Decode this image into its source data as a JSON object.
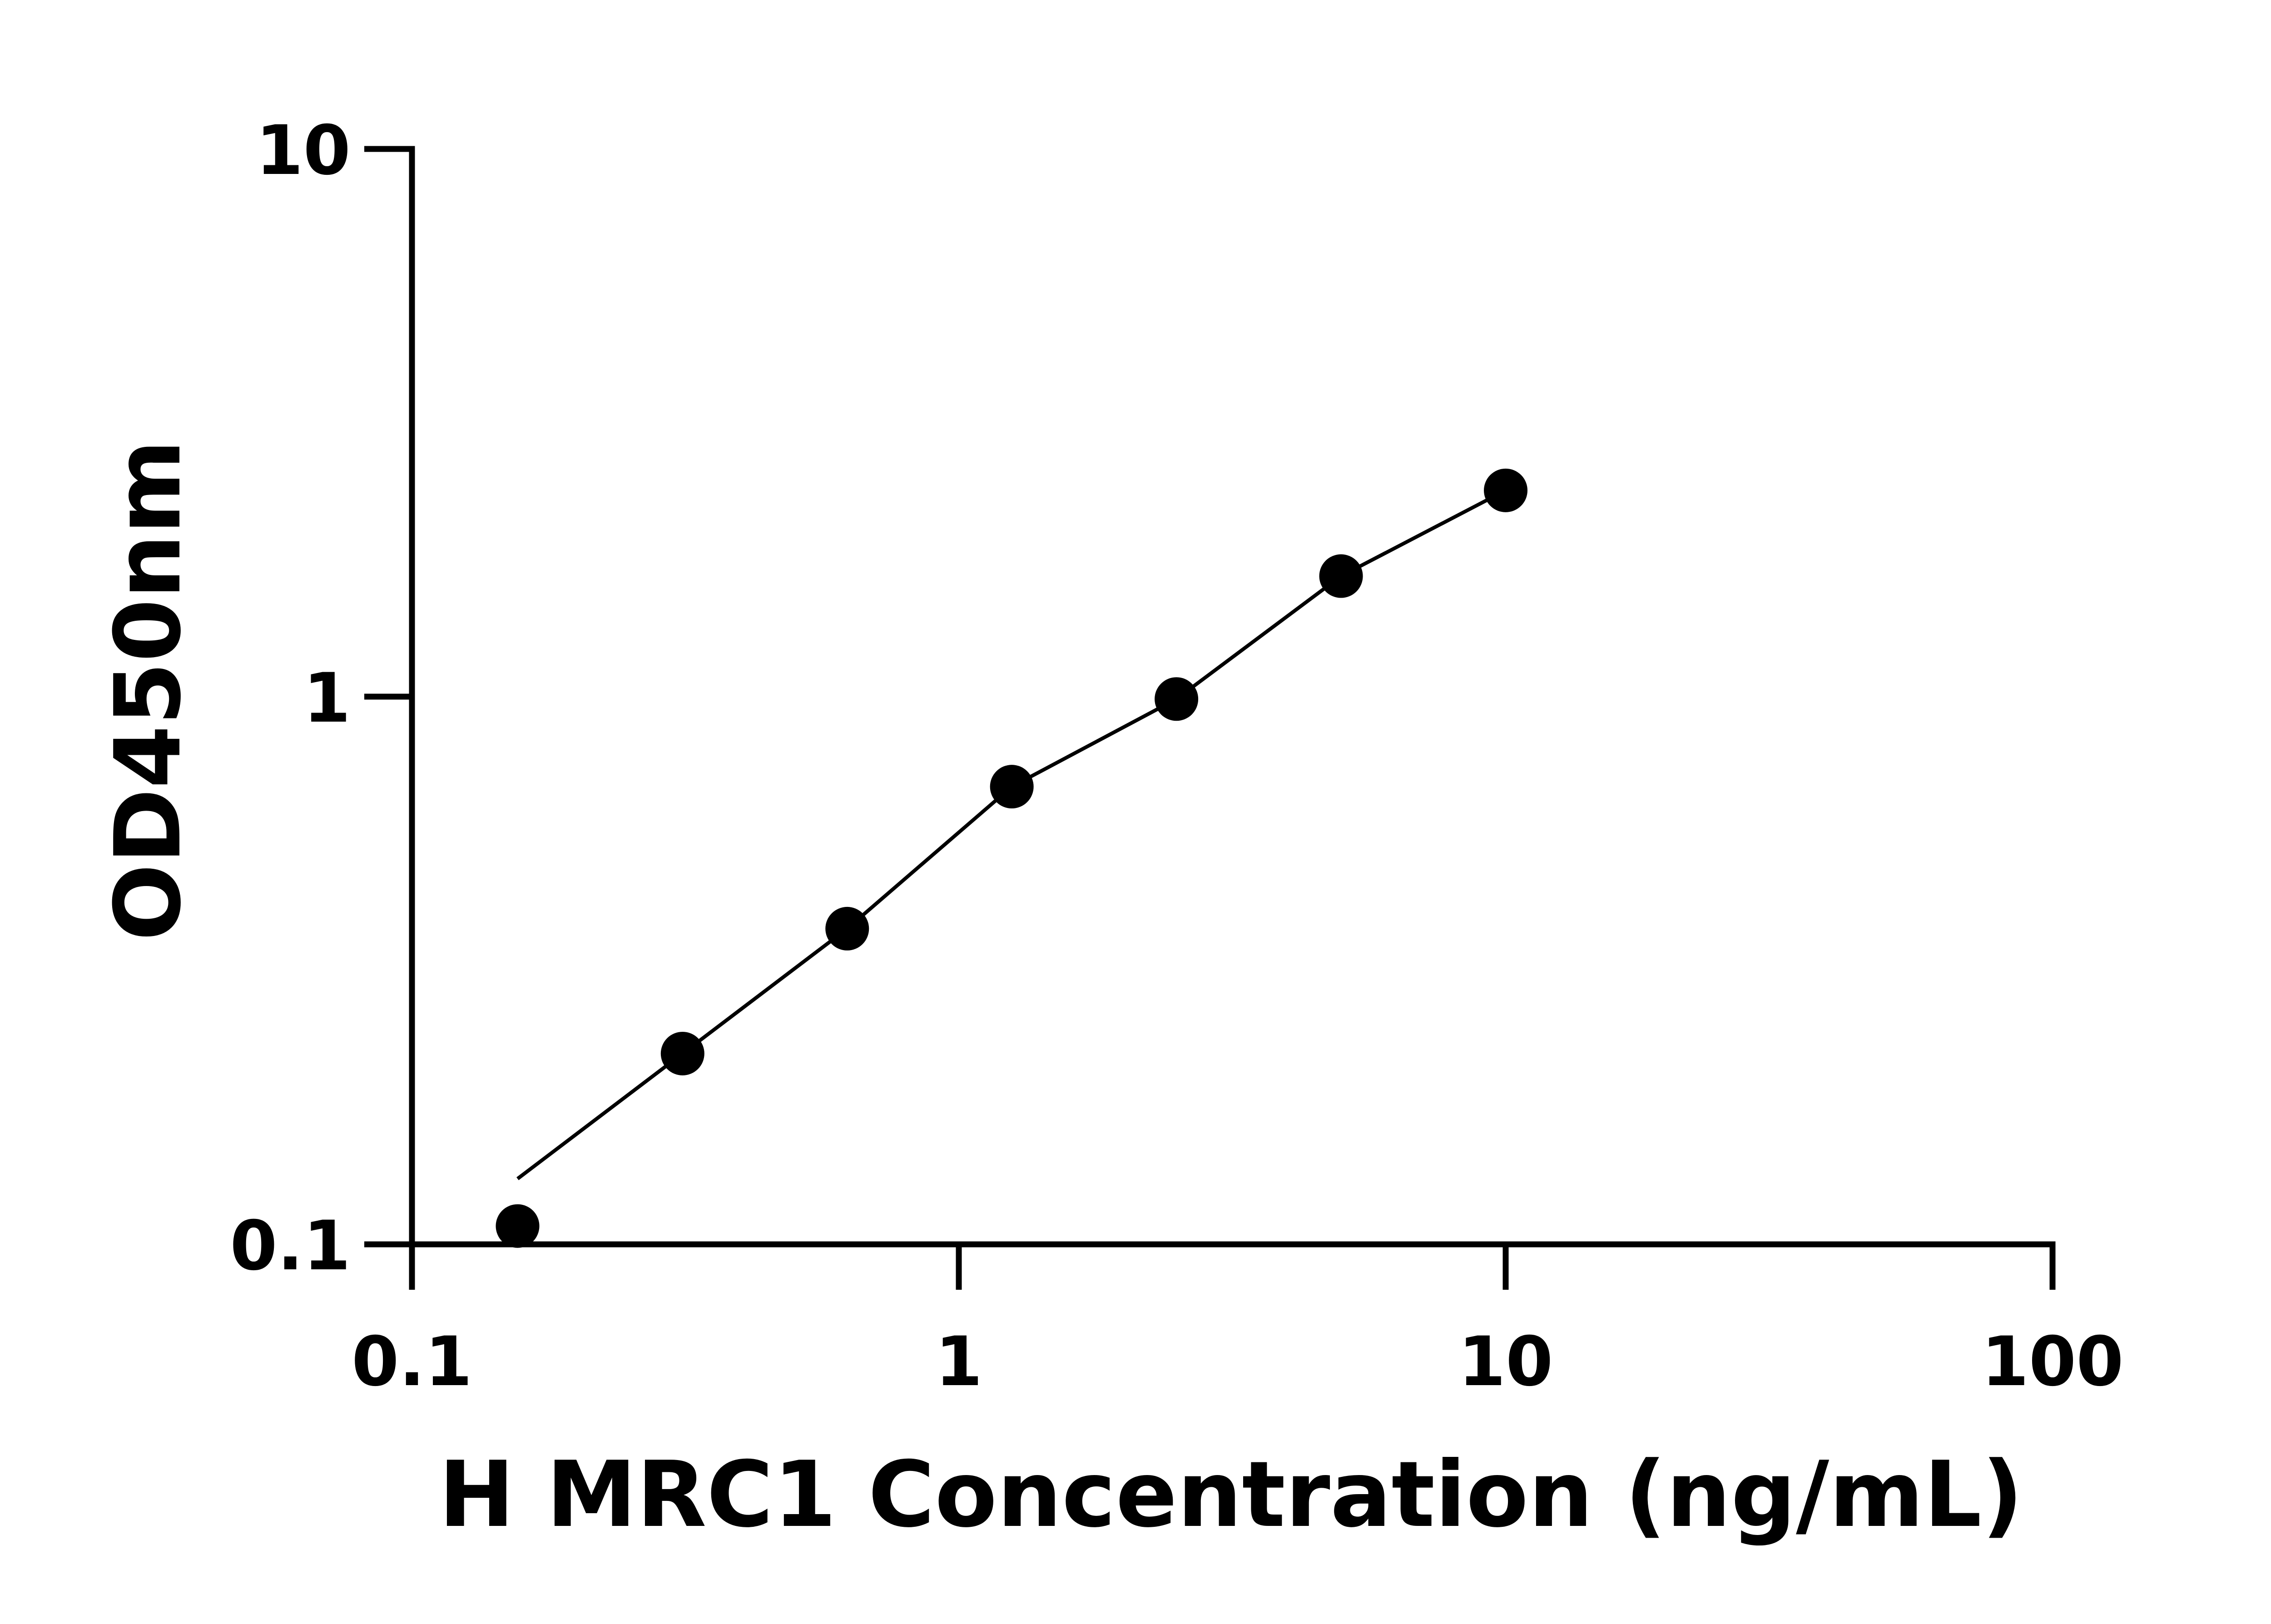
{
  "chart_data": {
    "type": "scatter",
    "title": "",
    "xlabel": "H MRC1 Concentration (ng/mL)",
    "ylabel": "OD450nm",
    "x_scale": "log",
    "y_scale": "log",
    "xlim": [
      0.1,
      100
    ],
    "ylim": [
      0.1,
      10
    ],
    "x_ticks": [
      0.1,
      1,
      10,
      100
    ],
    "x_tick_labels": [
      "0.1",
      "1",
      "10",
      "100"
    ],
    "y_ticks": [
      0.1,
      1,
      10
    ],
    "y_tick_labels": [
      "0.1",
      "1",
      "10"
    ],
    "grid": false,
    "series": [
      {
        "x": [
          0.156,
          0.3125,
          0.625,
          1.25,
          2.5,
          5,
          10
        ],
        "y": [
          0.108,
          0.223,
          0.377,
          0.685,
          0.99,
          1.66,
          2.38
        ],
        "marker": "circle",
        "fit_line": true,
        "color": "#000000"
      }
    ]
  }
}
